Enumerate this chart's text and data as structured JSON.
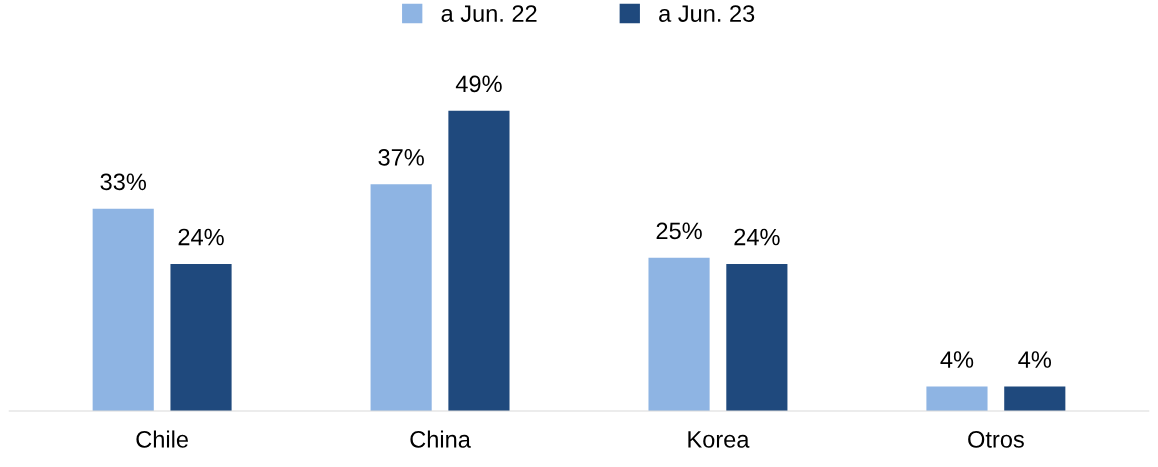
{
  "chart_data": {
    "type": "bar",
    "categories": [
      "Chile",
      "China",
      "Korea",
      "Otros"
    ],
    "series": [
      {
        "name": "a Jun. 22",
        "color": "#8eb4e3",
        "values": [
          33,
          37,
          25,
          4
        ],
        "value_labels": [
          "33%",
          "37%",
          "25%",
          "4%"
        ]
      },
      {
        "name": "a Jun. 23",
        "color": "#1f497d",
        "values": [
          24,
          49,
          24,
          4
        ],
        "value_labels": [
          "24%",
          "49%",
          "24%",
          "4%"
        ]
      }
    ],
    "legend": "top",
    "grid": false,
    "tick_labels": "x"
  }
}
